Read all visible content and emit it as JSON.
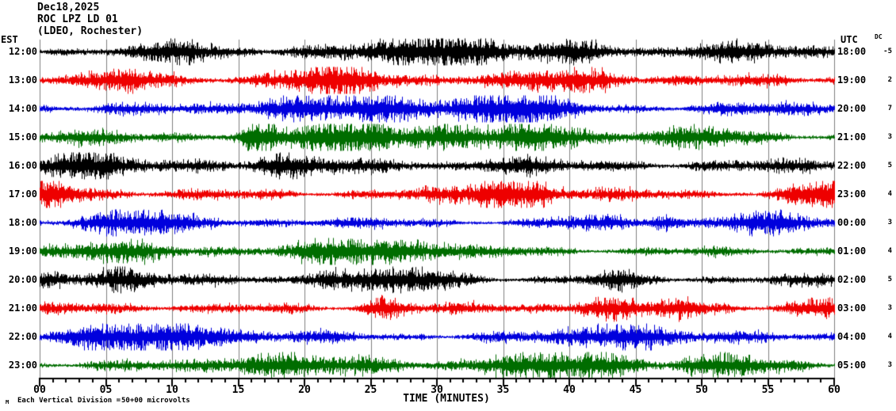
{
  "header": {
    "date": "Dec18,2025",
    "station_line": "ROC LPZ LD 01",
    "network_line": "(LDEO, Rochester)",
    "left_tz_label": "EST",
    "right_tz_label": "UTC",
    "dc_label": "DC"
  },
  "x_axis": {
    "title": "TIME (MINUTES)",
    "tick_labels": [
      "00",
      "05",
      "10",
      "15",
      "20",
      "25",
      "30",
      "35",
      "40",
      "45",
      "50",
      "55",
      "60"
    ],
    "range_minutes": [
      0,
      60
    ],
    "minutes_per_major_division": 5,
    "minutes_per_minor_tick": 1
  },
  "footer": {
    "watermark": "M",
    "label": "Each Vertical Division =",
    "value": "50+00 microvolts"
  },
  "colors": {
    "black": "#000000",
    "red": "#ee0000",
    "blue": "#0000dd",
    "green": "#006d00",
    "grid": "#7f7f7f",
    "axis": "#000000",
    "background": "#ffffff"
  },
  "chart_data": {
    "type": "line",
    "subtype": "helicorder-seismogram",
    "title": "ROC LPZ LD 01 (LDEO, Rochester) Dec18,2025",
    "xlabel": "TIME (MINUTES)",
    "x_range_minutes": [
      0,
      60
    ],
    "grid": "vertical-5-minute-lines",
    "vertical_division_microvolts": "50+00",
    "rows": [
      {
        "est": "12:00",
        "utc": "18:00",
        "dc": "-5",
        "color": "#000000",
        "amp": 10,
        "seed": 11
      },
      {
        "est": "13:00",
        "utc": "19:00",
        "dc": "2",
        "color": "#ee0000",
        "amp": 11,
        "seed": 22
      },
      {
        "est": "14:00",
        "utc": "20:00",
        "dc": "7",
        "color": "#0000dd",
        "amp": 10,
        "seed": 33
      },
      {
        "est": "15:00",
        "utc": "21:00",
        "dc": "3",
        "color": "#006d00",
        "amp": 10,
        "seed": 44
      },
      {
        "est": "16:00",
        "utc": "22:00",
        "dc": "5",
        "color": "#000000",
        "amp": 9.5,
        "seed": 55
      },
      {
        "est": "17:00",
        "utc": "23:00",
        "dc": "4",
        "color": "#ee0000",
        "amp": 9.5,
        "seed": 66
      },
      {
        "est": "18:00",
        "utc": "00:00",
        "dc": "3",
        "color": "#0000dd",
        "amp": 8,
        "seed": 77
      },
      {
        "est": "19:00",
        "utc": "01:00",
        "dc": "4",
        "color": "#006d00",
        "amp": 8.5,
        "seed": 88
      },
      {
        "est": "20:00",
        "utc": "02:00",
        "dc": "5",
        "color": "#000000",
        "amp": 8.5,
        "seed": 99
      },
      {
        "est": "21:00",
        "utc": "03:00",
        "dc": "3",
        "color": "#ee0000",
        "amp": 8.5,
        "seed": 111
      },
      {
        "est": "22:00",
        "utc": "04:00",
        "dc": "4",
        "color": "#0000dd",
        "amp": 8.5,
        "seed": 122
      },
      {
        "est": "23:00",
        "utc": "05:00",
        "dc": "3",
        "color": "#006d00",
        "amp": 8,
        "seed": 133
      }
    ]
  }
}
